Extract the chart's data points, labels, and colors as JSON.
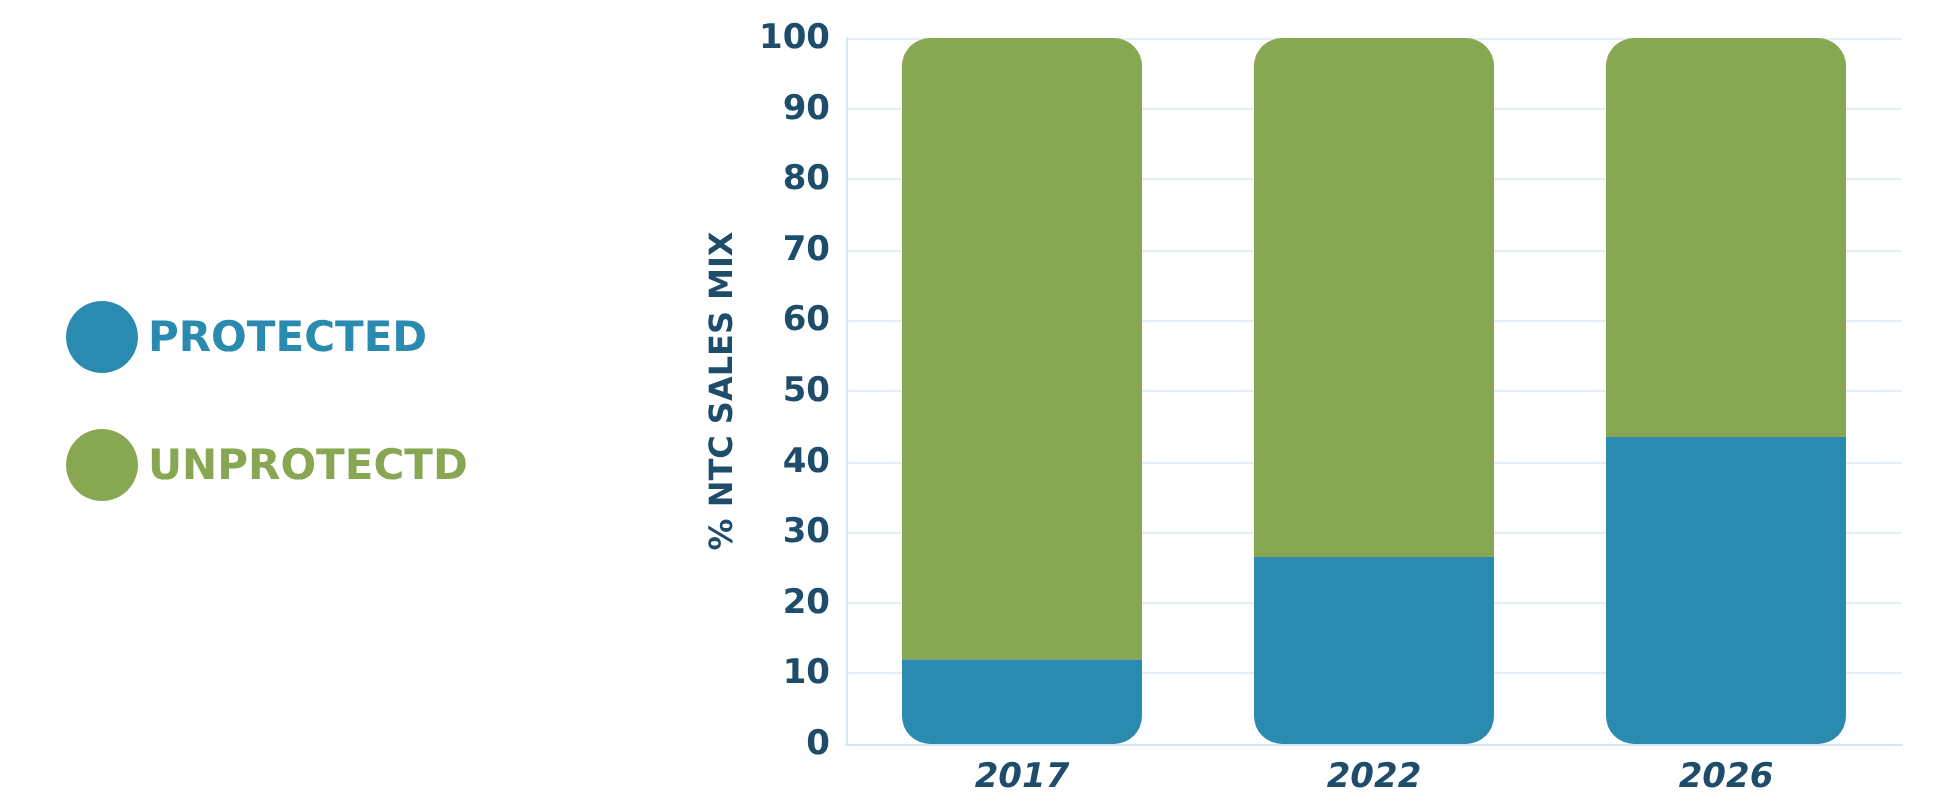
{
  "chart_data": {
    "type": "bar",
    "ylabel": "% NTC SALES MIX",
    "categories": [
      "2017",
      "2022",
      "2026"
    ],
    "stacked": true,
    "series": [
      {
        "name": "PROTECTED",
        "color": "#2a8ab0",
        "values": [
          12,
          26.5,
          43.5
        ]
      },
      {
        "name": "UNPROTECTD",
        "color": "#88a752",
        "values": [
          88,
          73.5,
          56.5
        ]
      }
    ],
    "ylim": [
      0,
      100
    ],
    "yticks": [
      0,
      10,
      20,
      30,
      40,
      50,
      60,
      70,
      80,
      90,
      100
    ],
    "grid": "y",
    "legend": "left"
  }
}
